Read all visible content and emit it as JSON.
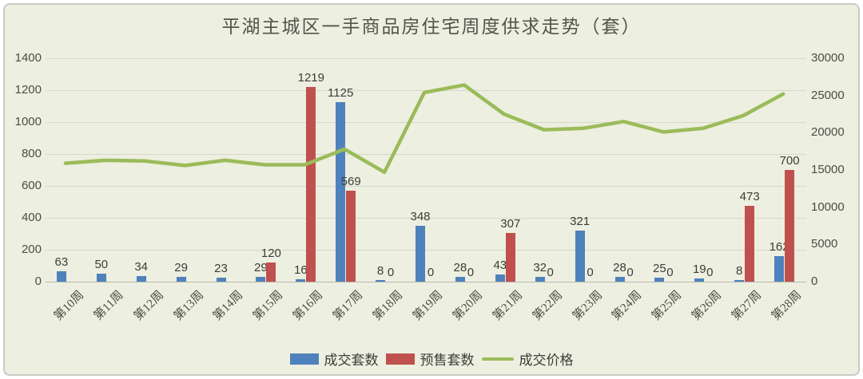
{
  "title": "平湖主城区一手商品房住宅周度供求走势（套）",
  "colors": {
    "bar_blue": "#4F81BD",
    "bar_red": "#C0504D",
    "line_green": "#9BBB59",
    "background": "#EDEFE0",
    "gridline": "#D5D8CB",
    "border": "#C9CCC3",
    "text": "#4D4D45"
  },
  "legend": [
    {
      "label": "成交套数",
      "swatch": "bar",
      "color_key": "bar_blue"
    },
    {
      "label": "预售套数",
      "swatch": "bar",
      "color_key": "bar_red"
    },
    {
      "label": "成交价格",
      "swatch": "line",
      "color_key": "line_green"
    }
  ],
  "chart_data": {
    "type": "bar",
    "subtype": "combo-bar-line",
    "title": "平湖主城区一手商品房住宅周度供求走势（套）",
    "categories": [
      "第10周",
      "第11周",
      "第12周",
      "第13周",
      "第14周",
      "第15周",
      "第16周",
      "第17周",
      "第18周",
      "第19周",
      "第20周",
      "第21周",
      "第22周",
      "第23周",
      "第24周",
      "第25周",
      "第26周",
      "第27周",
      "第28周"
    ],
    "series": [
      {
        "name": "成交套数",
        "type": "bar",
        "axis": "left",
        "color_key": "bar_blue",
        "values": [
          63,
          50,
          34,
          29,
          23,
          29,
          16,
          1125,
          8,
          348,
          28,
          43,
          32,
          321,
          28,
          25,
          19,
          8,
          162
        ]
      },
      {
        "name": "预售套数",
        "type": "bar",
        "axis": "left",
        "color_key": "bar_red",
        "values": [
          null,
          null,
          null,
          null,
          null,
          120,
          1219,
          569,
          0,
          0,
          0,
          307,
          0,
          0,
          0,
          0,
          0,
          473,
          700
        ]
      },
      {
        "name": "成交价格",
        "type": "line",
        "axis": "right",
        "color_key": "line_green",
        "values": [
          15900,
          16300,
          16200,
          15600,
          16300,
          15700,
          15700,
          17800,
          14700,
          25400,
          26400,
          22500,
          20400,
          20600,
          21500,
          20100,
          20600,
          22300,
          25200
        ]
      }
    ],
    "left_axis": {
      "min": 0,
      "max": 1400,
      "step": 200,
      "ticks": [
        "1400",
        "1200",
        "1000",
        "800",
        "600",
        "400",
        "200",
        "0"
      ]
    },
    "right_axis": {
      "min": 0,
      "max": 30000,
      "step": 5000,
      "ticks": [
        "30000",
        "25000",
        "20000",
        "15000",
        "10000",
        "5000",
        "0"
      ]
    },
    "grid": "horizontal",
    "legend_position": "bottom"
  }
}
